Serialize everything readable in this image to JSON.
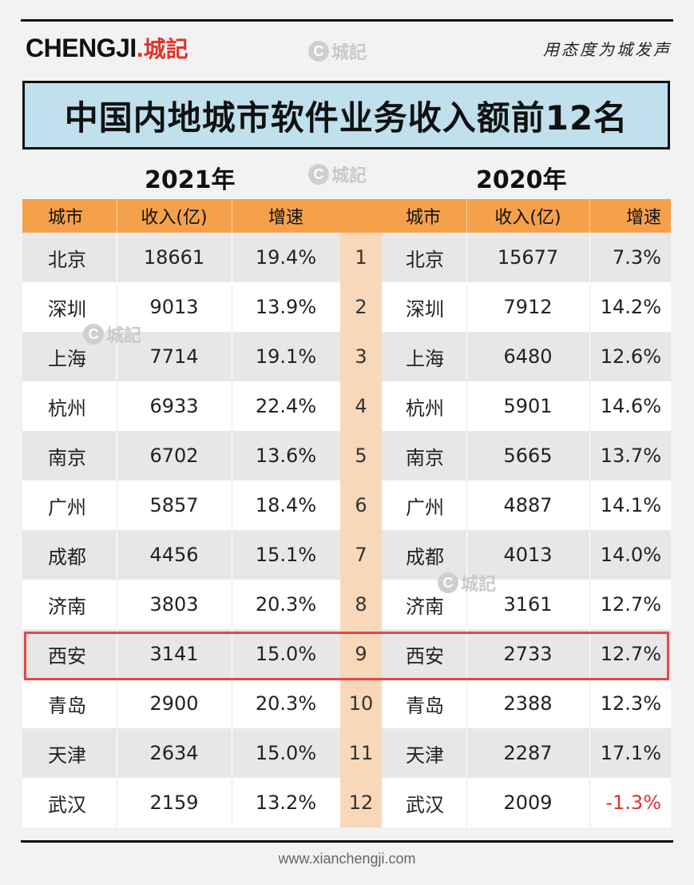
{
  "brand": {
    "latin": "CHENGJI",
    "dot": ".",
    "cn": "城記",
    "slogan": "用态度为城发声",
    "watermark_c": "C",
    "watermark_text": "城記"
  },
  "colors": {
    "title_bg": "#bfe0ec",
    "header_bg": "#f5a04a",
    "rank_bg": "#f8d8b8",
    "highlight_border": "#e44848",
    "negative": "#e0332c",
    "brand_red": "#e0332c"
  },
  "footer": "www.xianchengji.com",
  "chart_data": {
    "type": "table",
    "title": "中国内地城市软件业务收入额前12名",
    "years": [
      "2021年",
      "2020年"
    ],
    "columns": [
      "城市",
      "收入(亿)",
      "增速",
      "",
      "城市",
      "收入(亿)",
      "增速"
    ],
    "highlighted_rank": 9,
    "rows": [
      {
        "rank": "1",
        "city_2021": "北京",
        "rev_2021": "18661",
        "growth_2021": "19.4%",
        "city_2020": "北京",
        "rev_2020": "15677",
        "growth_2020": "7.3%"
      },
      {
        "rank": "2",
        "city_2021": "深圳",
        "rev_2021": "9013",
        "growth_2021": "13.9%",
        "city_2020": "深圳",
        "rev_2020": "7912",
        "growth_2020": "14.2%"
      },
      {
        "rank": "3",
        "city_2021": "上海",
        "rev_2021": "7714",
        "growth_2021": "19.1%",
        "city_2020": "上海",
        "rev_2020": "6480",
        "growth_2020": "12.6%"
      },
      {
        "rank": "4",
        "city_2021": "杭州",
        "rev_2021": "6933",
        "growth_2021": "22.4%",
        "city_2020": "杭州",
        "rev_2020": "5901",
        "growth_2020": "14.6%"
      },
      {
        "rank": "5",
        "city_2021": "南京",
        "rev_2021": "6702",
        "growth_2021": "13.6%",
        "city_2020": "南京",
        "rev_2020": "5665",
        "growth_2020": "13.7%"
      },
      {
        "rank": "6",
        "city_2021": "广州",
        "rev_2021": "5857",
        "growth_2021": "18.4%",
        "city_2020": "广州",
        "rev_2020": "4887",
        "growth_2020": "14.1%"
      },
      {
        "rank": "7",
        "city_2021": "成都",
        "rev_2021": "4456",
        "growth_2021": "15.1%",
        "city_2020": "成都",
        "rev_2020": "4013",
        "growth_2020": "14.0%"
      },
      {
        "rank": "8",
        "city_2021": "济南",
        "rev_2021": "3803",
        "growth_2021": "20.3%",
        "city_2020": "济南",
        "rev_2020": "3161",
        "growth_2020": "12.7%"
      },
      {
        "rank": "9",
        "city_2021": "西安",
        "rev_2021": "3141",
        "growth_2021": "15.0%",
        "city_2020": "西安",
        "rev_2020": "2733",
        "growth_2020": "12.7%"
      },
      {
        "rank": "10",
        "city_2021": "青岛",
        "rev_2021": "2900",
        "growth_2021": "20.3%",
        "city_2020": "青岛",
        "rev_2020": "2388",
        "growth_2020": "12.3%"
      },
      {
        "rank": "11",
        "city_2021": "天津",
        "rev_2021": "2634",
        "growth_2021": "15.0%",
        "city_2020": "天津",
        "rev_2020": "2287",
        "growth_2020": "17.1%"
      },
      {
        "rank": "12",
        "city_2021": "武汉",
        "rev_2021": "2159",
        "growth_2021": "13.2%",
        "city_2020": "武汉",
        "rev_2020": "2009",
        "growth_2020": "-1.3%"
      }
    ]
  }
}
